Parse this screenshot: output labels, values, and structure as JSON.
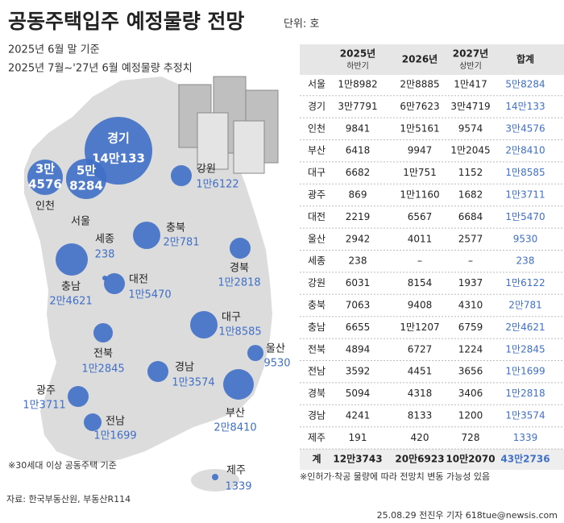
{
  "header": {
    "title": "공동주택입주 예정물량 전망",
    "unit": "단위: 호",
    "subtitle_1": "2025년 6월 말 기준",
    "subtitle_2": "2025년 7월~'27년 6월 예정물량 추정치"
  },
  "map": {
    "regions": [
      {
        "name": "경기",
        "value": "14만133"
      },
      {
        "name": "인천",
        "value_lines": [
          "3만",
          "4576"
        ]
      },
      {
        "name": "서울",
        "value_lines": [
          "5만",
          "8284"
        ]
      },
      {
        "name": "강원",
        "value": "1만6122"
      },
      {
        "name": "세종",
        "value": "238"
      },
      {
        "name": "충북",
        "value": "2만781"
      },
      {
        "name": "경북",
        "value": "1만2818"
      },
      {
        "name": "충남",
        "value": "2만4621"
      },
      {
        "name": "대전",
        "value": "1만5470"
      },
      {
        "name": "대구",
        "value": "1만8585"
      },
      {
        "name": "울산",
        "value": "9530"
      },
      {
        "name": "전북",
        "value": "1만2845"
      },
      {
        "name": "경남",
        "value": "1만3574"
      },
      {
        "name": "부산",
        "value": "2만8410"
      },
      {
        "name": "광주",
        "value": "1만3711"
      },
      {
        "name": "전남",
        "value": "1만1699"
      },
      {
        "name": "제주",
        "value": "1339"
      }
    ],
    "note": "※30세대 이상 공동주택 기준"
  },
  "table": {
    "columns": [
      {
        "year": "2025년",
        "sub": "하반기"
      },
      {
        "year": "2026년"
      },
      {
        "year": "2027년",
        "sub": "상반기"
      },
      {
        "year": "합계"
      }
    ],
    "rows": [
      [
        "서울",
        "1만8982",
        "2만8885",
        "1만417",
        "5만8284"
      ],
      [
        "경기",
        "3만7791",
        "6만7623",
        "3만4719",
        "14만133"
      ],
      [
        "인천",
        "9841",
        "1만5161",
        "9574",
        "3만4576"
      ],
      [
        "부산",
        "6418",
        "9947",
        "1만2045",
        "2만8410"
      ],
      [
        "대구",
        "6682",
        "1만751",
        "1152",
        "1만8585"
      ],
      [
        "광주",
        "869",
        "1만1160",
        "1682",
        "1만3711"
      ],
      [
        "대전",
        "2219",
        "6567",
        "6684",
        "1만5470"
      ],
      [
        "울산",
        "2942",
        "4011",
        "2577",
        "9530"
      ],
      [
        "세종",
        "238",
        "–",
        "–",
        "238"
      ],
      [
        "강원",
        "6031",
        "8154",
        "1937",
        "1만6122"
      ],
      [
        "충북",
        "7063",
        "9408",
        "4310",
        "2만781"
      ],
      [
        "충남",
        "6655",
        "1만1207",
        "6759",
        "2만4621"
      ],
      [
        "전북",
        "4894",
        "6727",
        "1224",
        "1만2845"
      ],
      [
        "전남",
        "3592",
        "4451",
        "3656",
        "1만1699"
      ],
      [
        "경북",
        "5094",
        "4318",
        "3406",
        "1만2818"
      ],
      [
        "경남",
        "4241",
        "8133",
        "1200",
        "1만3574"
      ],
      [
        "제주",
        "191",
        "420",
        "728",
        "1339"
      ]
    ],
    "total": [
      "계",
      "12만3743",
      "20만6923",
      "10만2070",
      "43만2736"
    ],
    "note": "※인허가·착공 물량에 따라 전망치 변동 가능성 있음"
  },
  "footer": {
    "source": "자료: 한국부동산원, 부동산R114",
    "credit": "25.08.29 전진우 기자 618tue@newsis.com"
  }
}
